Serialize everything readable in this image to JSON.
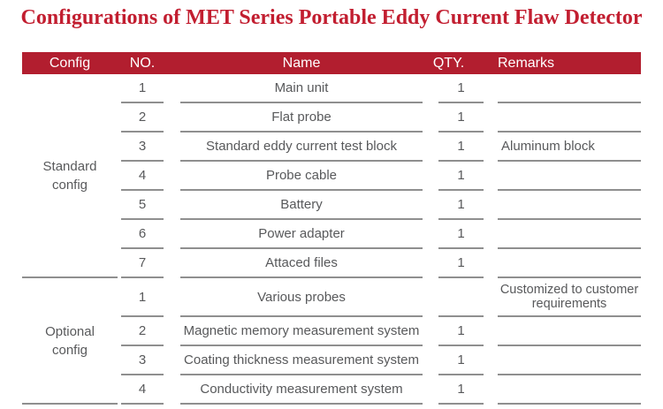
{
  "title": "Configurations of MET Series Portable Eddy Current Flaw Detector",
  "colors": {
    "header_bg": "#B21E2F",
    "title": "#C21E30",
    "row_line": "#8f8f8f",
    "cell_text": "#58595b",
    "header_text": "#ffffff"
  },
  "table": {
    "headers": {
      "config": "Config",
      "no": "NO.",
      "name": "Name",
      "qty": "QTY.",
      "remarks": "Remarks"
    },
    "sections": [
      {
        "label_line1": "Standard",
        "label_line2": "config",
        "rows": [
          {
            "no": "1",
            "name": "Main unit",
            "qty": "1",
            "remarks": ""
          },
          {
            "no": "2",
            "name": "Flat probe",
            "qty": "1",
            "remarks": ""
          },
          {
            "no": "3",
            "name": "Standard eddy current test block",
            "qty": "1",
            "remarks": "Aluminum block"
          },
          {
            "no": "4",
            "name": "Probe cable",
            "qty": "1",
            "remarks": ""
          },
          {
            "no": "5",
            "name": "Battery",
            "qty": "1",
            "remarks": ""
          },
          {
            "no": "6",
            "name": "Power adapter",
            "qty": "1",
            "remarks": ""
          },
          {
            "no": "7",
            "name": "Attaced files",
            "qty": "1",
            "remarks": ""
          }
        ]
      },
      {
        "label_line1": "Optional",
        "label_line2": "config",
        "rows": [
          {
            "no": "1",
            "name": "Various probes",
            "qty": "",
            "remarks": "Customized to customer requirements",
            "tall": true
          },
          {
            "no": "2",
            "name": "Magnetic memory measurement system",
            "qty": "1",
            "remarks": ""
          },
          {
            "no": "3",
            "name": "Coating thickness measurement system",
            "qty": "1",
            "remarks": ""
          },
          {
            "no": "4",
            "name": "Conductivity measurement system",
            "qty": "1",
            "remarks": ""
          }
        ]
      }
    ]
  }
}
